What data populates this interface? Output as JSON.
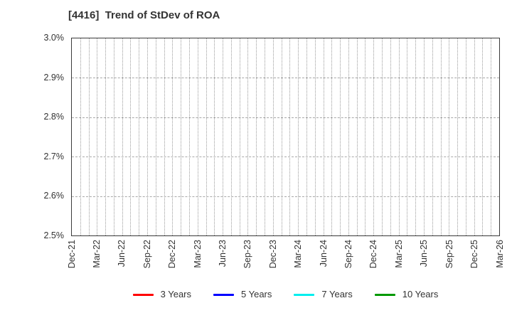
{
  "chart": {
    "title": "[4416]  Trend of StDev of ROA"
  },
  "chart_data": {
    "type": "line",
    "title": "[4416]  Trend of StDev of ROA",
    "xlabel": "",
    "ylabel": "",
    "x_labels": [
      "Dec-21",
      "Mar-22",
      "Jun-22",
      "Sep-22",
      "Dec-22",
      "Mar-23",
      "Jun-23",
      "Sep-23",
      "Dec-23",
      "Mar-24",
      "Jun-24",
      "Sep-24",
      "Dec-24",
      "Mar-25",
      "Jun-25",
      "Sep-25",
      "Dec-25",
      "Mar-26"
    ],
    "x_gridlines_per_label_interval": 3,
    "y_ticks": [
      "3.0%",
      "2.9%",
      "2.8%",
      "2.7%",
      "2.6%",
      "2.5%"
    ],
    "ylim": [
      2.5,
      3.0
    ],
    "y_tick_step": 0.1,
    "y_unit": "%",
    "grid": true,
    "legend_position": "bottom",
    "series": [
      {
        "name": "3 Years",
        "color": "#ff0000",
        "values": []
      },
      {
        "name": "5 Years",
        "color": "#0000ff",
        "values": []
      },
      {
        "name": "7 Years",
        "color": "#00eeee",
        "values": []
      },
      {
        "name": "10 Years",
        "color": "#009900",
        "values": []
      }
    ]
  }
}
